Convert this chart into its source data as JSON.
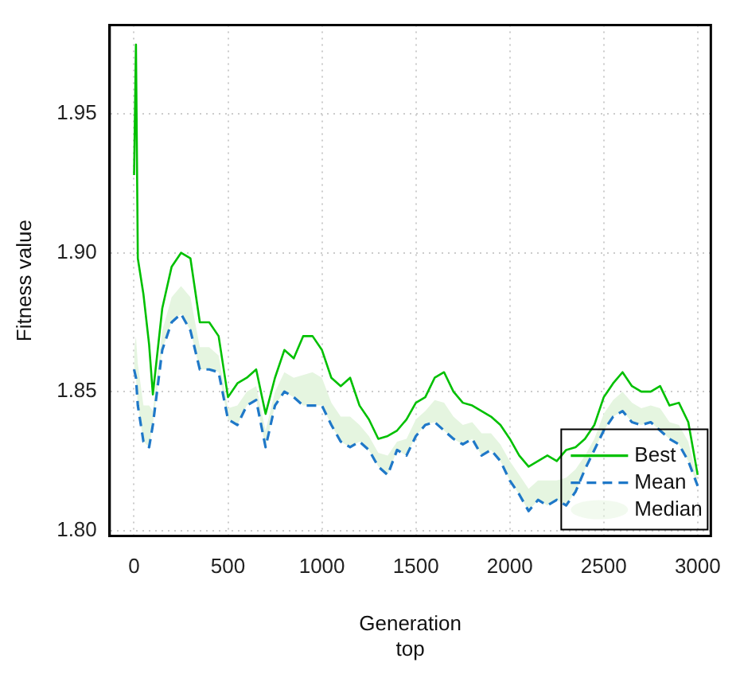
{
  "chart_data": {
    "type": "line",
    "xlabel": "Generation",
    "ylabel": "Fitness value",
    "annotations": [
      "top"
    ],
    "x": [
      0,
      10,
      20,
      50,
      80,
      100,
      150,
      200,
      250,
      300,
      350,
      400,
      450,
      500,
      550,
      600,
      650,
      700,
      750,
      800,
      850,
      900,
      950,
      1000,
      1050,
      1100,
      1150,
      1200,
      1250,
      1300,
      1350,
      1400,
      1450,
      1500,
      1550,
      1600,
      1650,
      1700,
      1750,
      1800,
      1850,
      1900,
      1950,
      2000,
      2050,
      2100,
      2150,
      2200,
      2250,
      2300,
      2350,
      2400,
      2450,
      2500,
      2550,
      2600,
      2650,
      2700,
      2750,
      2800,
      2850,
      2900,
      2950,
      3000
    ],
    "series": [
      {
        "name": "Best",
        "color": "#00c000",
        "line_style": "solid",
        "values": [
          1.928,
          1.975,
          1.898,
          1.885,
          1.867,
          1.849,
          1.88,
          1.895,
          1.9,
          1.898,
          1.875,
          1.875,
          1.87,
          1.848,
          1.853,
          1.855,
          1.858,
          1.842,
          1.855,
          1.865,
          1.862,
          1.87,
          1.87,
          1.865,
          1.855,
          1.852,
          1.855,
          1.845,
          1.84,
          1.833,
          1.834,
          1.836,
          1.84,
          1.846,
          1.848,
          1.855,
          1.857,
          1.85,
          1.846,
          1.845,
          1.843,
          1.841,
          1.838,
          1.833,
          1.827,
          1.823,
          1.825,
          1.827,
          1.825,
          1.829,
          1.83,
          1.833,
          1.838,
          1.848,
          1.853,
          1.857,
          1.852,
          1.85,
          1.85,
          1.852,
          1.845,
          1.846,
          1.839,
          1.82
        ]
      },
      {
        "name": "Mean",
        "color": "#1f78c8",
        "line_style": "dashed",
        "values": [
          1.858,
          1.855,
          1.845,
          1.832,
          1.83,
          1.838,
          1.865,
          1.875,
          1.878,
          1.872,
          1.858,
          1.858,
          1.857,
          1.84,
          1.838,
          1.845,
          1.847,
          1.83,
          1.845,
          1.85,
          1.848,
          1.845,
          1.845,
          1.845,
          1.838,
          1.832,
          1.83,
          1.832,
          1.829,
          1.823,
          1.82,
          1.829,
          1.827,
          1.834,
          1.838,
          1.839,
          1.836,
          1.833,
          1.831,
          1.833,
          1.827,
          1.829,
          1.825,
          1.818,
          1.813,
          1.807,
          1.811,
          1.809,
          1.811,
          1.809,
          1.814,
          1.822,
          1.829,
          1.836,
          1.841,
          1.843,
          1.839,
          1.838,
          1.839,
          1.836,
          1.833,
          1.831,
          1.825,
          1.816
        ]
      },
      {
        "name": "Median",
        "type": "area",
        "color": "#e5f5e0",
        "values": [
          1.865,
          1.87,
          1.86,
          1.845,
          1.845,
          1.843,
          1.872,
          1.884,
          1.888,
          1.884,
          1.866,
          1.866,
          1.863,
          1.844,
          1.845,
          1.85,
          1.852,
          1.836,
          1.85,
          1.857,
          1.855,
          1.856,
          1.857,
          1.855,
          1.846,
          1.841,
          1.841,
          1.838,
          1.834,
          1.828,
          1.827,
          1.832,
          1.833,
          1.84,
          1.843,
          1.847,
          1.846,
          1.841,
          1.838,
          1.839,
          1.835,
          1.835,
          1.831,
          1.825,
          1.82,
          1.815,
          1.818,
          1.818,
          1.818,
          1.819,
          1.822,
          1.827,
          1.833,
          1.842,
          1.847,
          1.85,
          1.846,
          1.844,
          1.845,
          1.844,
          1.839,
          1.838,
          1.832,
          1.818
        ]
      }
    ],
    "xlim": [
      -130,
      3070
    ],
    "xticks": [
      0,
      500,
      1000,
      1500,
      2000,
      2500,
      3000
    ],
    "ylim": [
      1.798,
      1.982
    ],
    "yticks": [
      {
        "value": 1.8,
        "label": "1.80"
      },
      1.85,
      {
        "value": 1.9,
        "label": "1.90"
      },
      1.95
    ],
    "grid": true,
    "legend": "bottom right",
    "marker": "none"
  }
}
